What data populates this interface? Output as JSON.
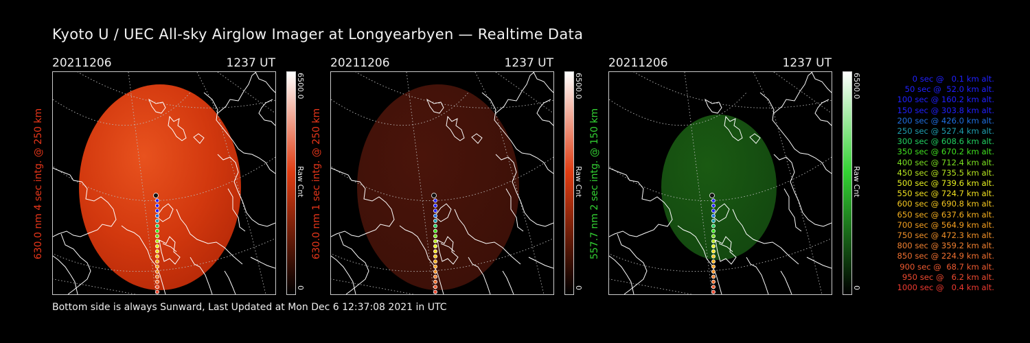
{
  "title": "Kyoto U / UEC All-sky Airglow Imager at Longyearbyen — Realtime Data",
  "colors": {
    "red": "#e8361a",
    "green": "#3dd63d",
    "frame": "#cccccc"
  },
  "panels": [
    {
      "date": "20211206",
      "time": "1237 UT",
      "ylabel": "630.0 nm 4 sec intg. @ 250 km",
      "cb_max": "6500.0",
      "cb_min": "0",
      "cb_unit": "Raw Cnt",
      "color": "#e03c12",
      "scheme": "red-bright"
    },
    {
      "date": "20211206",
      "time": "1237 UT",
      "ylabel": "630.0 nm 1 sec intg. @ 250 km",
      "cb_max": "6500.0",
      "cb_min": "0",
      "cb_unit": "Raw Cnt",
      "color": "#e03c12",
      "scheme": "red-dim"
    },
    {
      "date": "20211206",
      "time": "1237 UT",
      "ylabel": "557.7 nm 2 sec intg. @ 150 km",
      "cb_max": "6500.0",
      "cb_min": "0",
      "cb_unit": "Raw Cnt",
      "color": "#33d233",
      "scheme": "green"
    }
  ],
  "legend": [
    {
      "text": "0 sec @   0.1 km alt.",
      "color": "#2020ff"
    },
    {
      "text": "50 sec @  52.0 km alt.",
      "color": "#2020ff"
    },
    {
      "text": "100 sec @ 160.2 km alt.",
      "color": "#2020ff"
    },
    {
      "text": "150 sec @ 303.8 km alt.",
      "color": "#2020ff"
    },
    {
      "text": "200 sec @ 426.0 km alt.",
      "color": "#1f6fe0"
    },
    {
      "text": "250 sec @ 527.4 km alt.",
      "color": "#1f9fb0"
    },
    {
      "text": "300 sec @ 608.6 km alt.",
      "color": "#22d060"
    },
    {
      "text": "350 sec @ 670.2 km alt.",
      "color": "#40e020"
    },
    {
      "text": "400 sec @ 712.4 km alt.",
      "color": "#7ae020"
    },
    {
      "text": "450 sec @ 735.5 km alt.",
      "color": "#b6e620"
    },
    {
      "text": "500 sec @ 739.6 km alt.",
      "color": "#e6f020"
    },
    {
      "text": "550 sec @ 724.7 km alt.",
      "color": "#f0e020"
    },
    {
      "text": "600 sec @ 690.8 km alt.",
      "color": "#f5c820"
    },
    {
      "text": "650 sec @ 637.6 km alt.",
      "color": "#f5b020"
    },
    {
      "text": "700 sec @ 564.9 km alt.",
      "color": "#f5a020"
    },
    {
      "text": "750 sec @ 472.3 km alt.",
      "color": "#f09028"
    },
    {
      "text": "800 sec @ 359.2 km alt.",
      "color": "#f08030"
    },
    {
      "text": "850 sec @ 224.9 km alt.",
      "color": "#f07030"
    },
    {
      "text": "900 sec @  68.7 km alt.",
      "color": "#ee5a30"
    },
    {
      "text": "950 sec @   6.2 km alt.",
      "color": "#ee4a30"
    },
    {
      "text": "1000 sec @   0.4 km alt.",
      "color": "#ee3a30"
    }
  ],
  "footer": "Bottom side is always Sunward, Last Updated at Mon Dec  6 12:37:08 2021 in UTC"
}
